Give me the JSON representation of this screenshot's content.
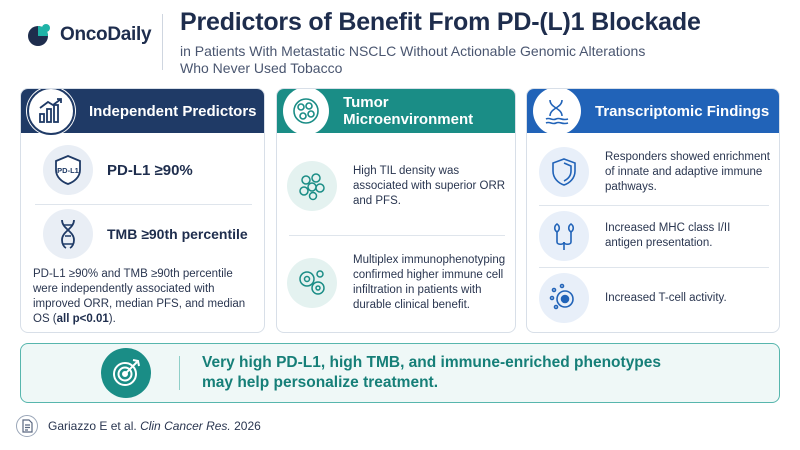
{
  "header": {
    "logo_text": "OncoDaily",
    "title": "Predictors of Benefit From PD-(L)1 Blockade",
    "subtitle_line1": "in Patients With Metastatic NSCLC Without Actionable Genomic Alterations",
    "subtitle_line2": "Who Never Used Tobacco"
  },
  "cards": [
    {
      "title": "Independent Predictors",
      "items": [
        {
          "icon": "shield-icon",
          "icon_text": "PD-L1",
          "label": "PD-L1 ≥90%"
        },
        {
          "icon": "dna-icon",
          "label": "TMB ≥90th percentile"
        }
      ],
      "note_prefix": "PD-L1 ≥90% and TMB ≥90th percentile were independently associated with improved ORR, median PFS, and median OS (",
      "note_bold": "all p<0.01",
      "note_suffix": ")."
    },
    {
      "title": "Tumor Microenvironment",
      "items": [
        {
          "icon": "cell-cluster-icon",
          "text": "High TIL density was associated with superior ORR and PFS."
        },
        {
          "icon": "immune-cells-icon",
          "text": "Multiplex immunophenotyping confirmed higher immune cell infiltration in patients with durable clinical benefit."
        }
      ]
    },
    {
      "title": "Transcriptomic Findings",
      "items": [
        {
          "icon": "shield-outline-icon",
          "text": "Responders showed enrichment of innate and adaptive immune pathways."
        },
        {
          "icon": "mhc-receptor-icon",
          "text": "Increased MHC class I/II antigen presentation."
        },
        {
          "icon": "t-cell-icon",
          "text": "Increased T-cell activity."
        }
      ]
    }
  ],
  "banner": {
    "line1": "Very high PD-L1, high TMB, and immune-enriched phenotypes",
    "line2": "may help personalize treatment."
  },
  "footer": {
    "citation_prefix": "Gariazzo E et al.",
    "journal": "Clin Cancer Res.",
    "year": "2026"
  },
  "colors": {
    "navy": "#1f3a66",
    "teal": "#1a8d86",
    "blue": "#2163b8"
  }
}
